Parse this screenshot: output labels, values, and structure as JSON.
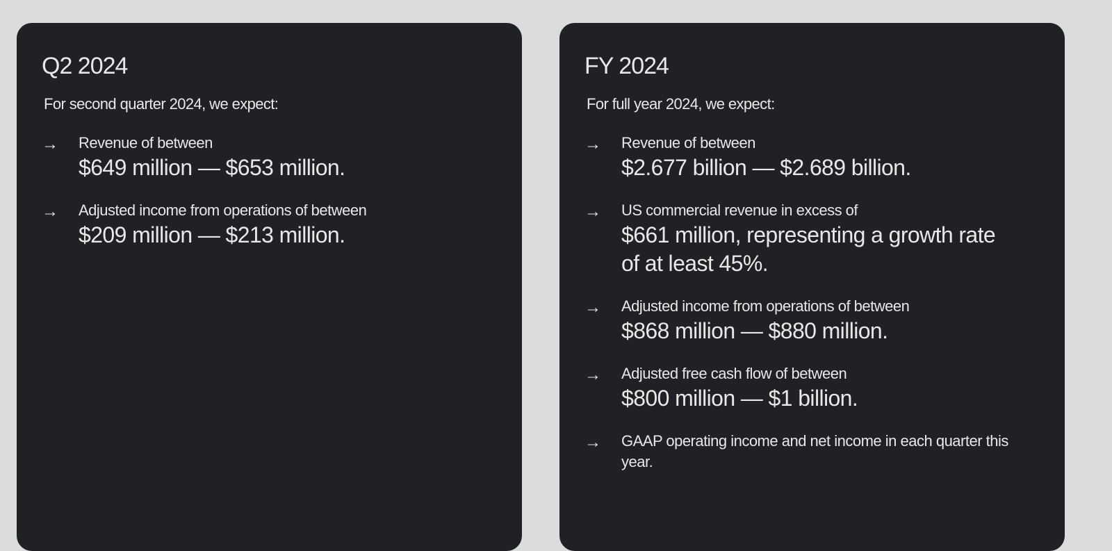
{
  "colors": {
    "background": "#dcdcdc",
    "card": "#1f2124",
    "text": "#e8e8e8"
  },
  "cards": [
    {
      "title": "Q2 2024",
      "intro": "For second quarter 2024, we expect:",
      "items": [
        {
          "icon": "arrow-right-icon",
          "label": "Revenue of between",
          "value": "$649 million — $653 million."
        },
        {
          "icon": "arrow-right-icon",
          "label": "Adjusted income from operations of between",
          "value": "$209 million — $213 million."
        }
      ]
    },
    {
      "title": "FY 2024",
      "intro": "For full year 2024, we expect:",
      "items": [
        {
          "icon": "arrow-right-icon",
          "label": "Revenue of between",
          "value": "$2.677 billion — $2.689 billion."
        },
        {
          "icon": "arrow-right-icon",
          "label": "US commercial revenue in excess of",
          "value": "$661 million, representing a growth rate of at least 45%."
        },
        {
          "icon": "arrow-right-icon",
          "label": "Adjusted income from operations of between",
          "value": "$868 million — $880 million."
        },
        {
          "icon": "arrow-right-icon",
          "label": "Adjusted free cash flow of between",
          "value": "$800 million — $1 billion."
        },
        {
          "icon": "arrow-right-icon",
          "label": "GAAP operating income and net income in each quarter this year.",
          "value": ""
        }
      ]
    }
  ]
}
